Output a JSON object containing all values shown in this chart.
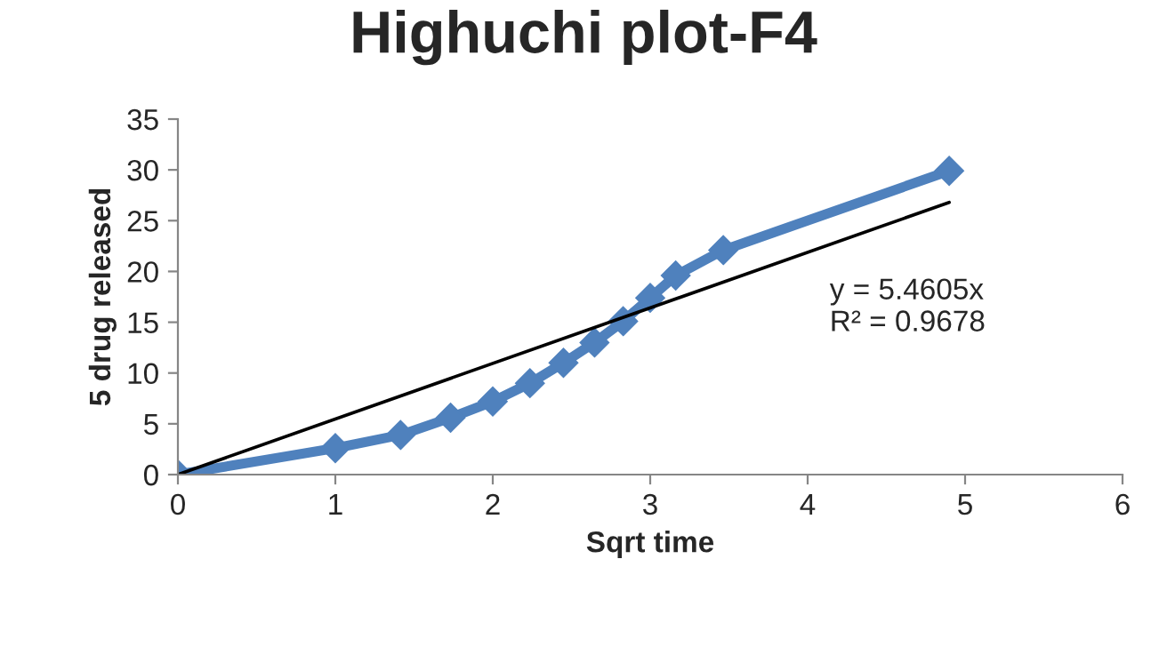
{
  "chart_data": {
    "type": "line",
    "title": "Highuchi plot-F4",
    "xlabel": "Sqrt time",
    "ylabel": "5 drug released",
    "series": [
      {
        "color": "#4f81bd",
        "marker": "diamond",
        "x": [
          0,
          1,
          1.414,
          1.732,
          2,
          2.236,
          2.449,
          2.646,
          2.828,
          3,
          3.162,
          3.464,
          4.899
        ],
        "values": [
          0,
          2.6,
          3.9,
          5.6,
          7.2,
          9.0,
          11.0,
          13.0,
          15.1,
          17.4,
          19.6,
          22.1,
          29.9
        ]
      },
      {
        "color": "#000000",
        "marker": "none",
        "x": [
          0,
          4.899
        ],
        "values": [
          0,
          26.8
        ]
      }
    ],
    "annotations": [
      "y = 5.4605x\nR² = 0.9678"
    ],
    "xlim": [
      0,
      6
    ],
    "xticks": [
      0,
      1,
      2,
      3,
      4,
      5,
      6
    ],
    "ylim": [
      0,
      35
    ],
    "yticks": [
      0,
      5,
      10,
      15,
      20,
      25,
      30,
      35
    ],
    "grid": false,
    "legend": false
  }
}
